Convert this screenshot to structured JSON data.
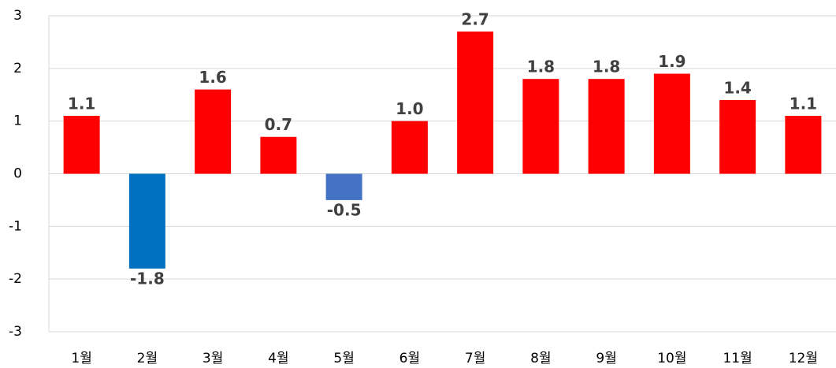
{
  "chart_data": {
    "type": "bar",
    "categories": [
      "1월",
      "2월",
      "3월",
      "4월",
      "5월",
      "6월",
      "7월",
      "8월",
      "9월",
      "10월",
      "11월",
      "12월"
    ],
    "values": [
      1.1,
      -1.8,
      1.6,
      0.7,
      -0.5,
      1.0,
      2.7,
      1.8,
      1.8,
      1.9,
      1.4,
      1.1
    ],
    "value_labels": [
      "1.1",
      "-1.8",
      "1.6",
      "0.7",
      "-0.5",
      "1.0",
      "2.7",
      "1.8",
      "1.8",
      "1.9",
      "1.4",
      "1.1"
    ],
    "colors": [
      "#ff0000",
      "#0070c0",
      "#ff0000",
      "#ff0000",
      "#4472c4",
      "#ff0000",
      "#ff0000",
      "#ff0000",
      "#ff0000",
      "#ff0000",
      "#ff0000",
      "#ff0000"
    ],
    "ylim": [
      -3,
      3
    ],
    "yticks": [
      -3,
      -2,
      -1,
      0,
      1,
      2,
      3
    ],
    "grid": true
  }
}
